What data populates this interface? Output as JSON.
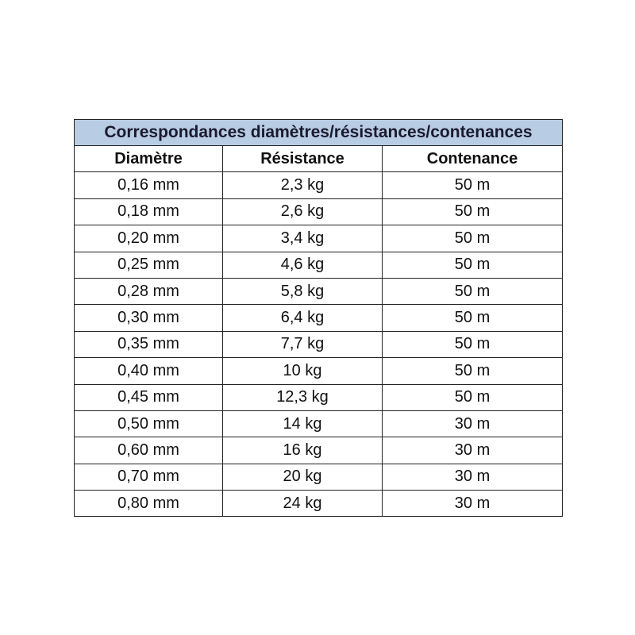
{
  "title": "Correspondances diamètres/résistances/contenances",
  "colors": {
    "title_background": "#b8cce4"
  },
  "headers": [
    "Diamètre",
    "Résistance",
    "Contenance"
  ],
  "rows": [
    [
      "0,16 mm",
      "2,3 kg",
      "50 m"
    ],
    [
      "0,18 mm",
      "2,6 kg",
      "50 m"
    ],
    [
      "0,20 mm",
      "3,4 kg",
      "50 m"
    ],
    [
      "0,25 mm",
      "4,6 kg",
      "50 m"
    ],
    [
      "0,28 mm",
      "5,8 kg",
      "50 m"
    ],
    [
      "0,30 mm",
      "6,4 kg",
      "50 m"
    ],
    [
      "0,35 mm",
      "7,7 kg",
      "50 m"
    ],
    [
      "0,40 mm",
      "10 kg",
      "50 m"
    ],
    [
      "0,45 mm",
      "12,3 kg",
      "50 m"
    ],
    [
      "0,50 mm",
      "14 kg",
      "30 m"
    ],
    [
      "0,60 mm",
      "16 kg",
      "30 m"
    ],
    [
      "0,70 mm",
      "20 kg",
      "30 m"
    ],
    [
      "0,80 mm",
      "24 kg",
      "30 m"
    ]
  ]
}
